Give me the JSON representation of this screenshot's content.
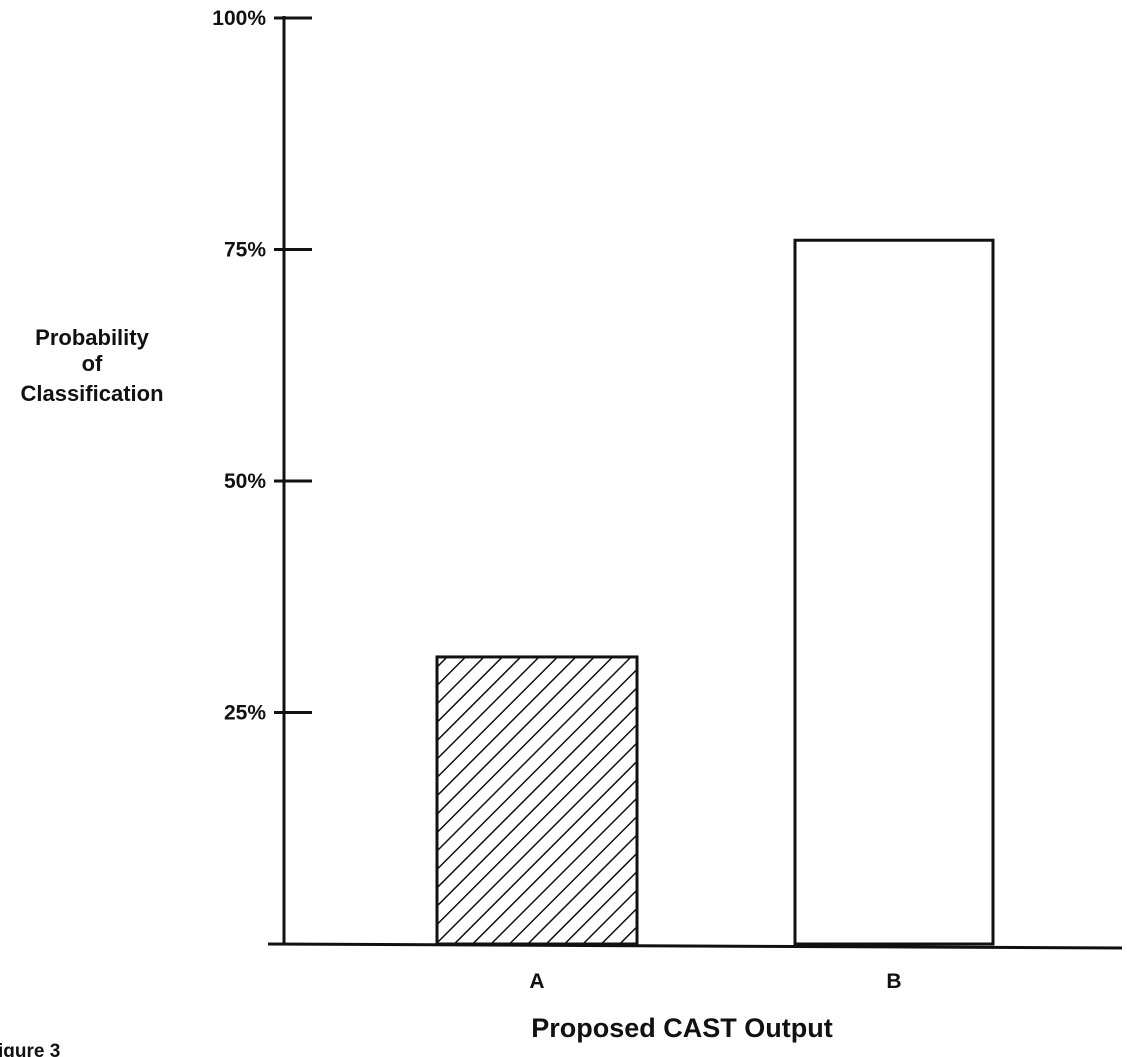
{
  "chart_data": {
    "type": "bar",
    "categories": [
      "A",
      "B"
    ],
    "values": [
      31,
      76
    ],
    "bar_fills": [
      "hatched",
      "white"
    ],
    "ylim": [
      0,
      100
    ],
    "yticks": [
      25,
      50,
      75,
      100
    ],
    "ytick_labels": [
      "25%",
      "50%",
      "75%",
      "100%"
    ],
    "ylabel_lines": [
      "Probability",
      "of",
      "Classification"
    ],
    "xlabel": "Proposed CAST Output",
    "title": "",
    "grid": false,
    "legend": "none",
    "caption": "igure 3"
  }
}
